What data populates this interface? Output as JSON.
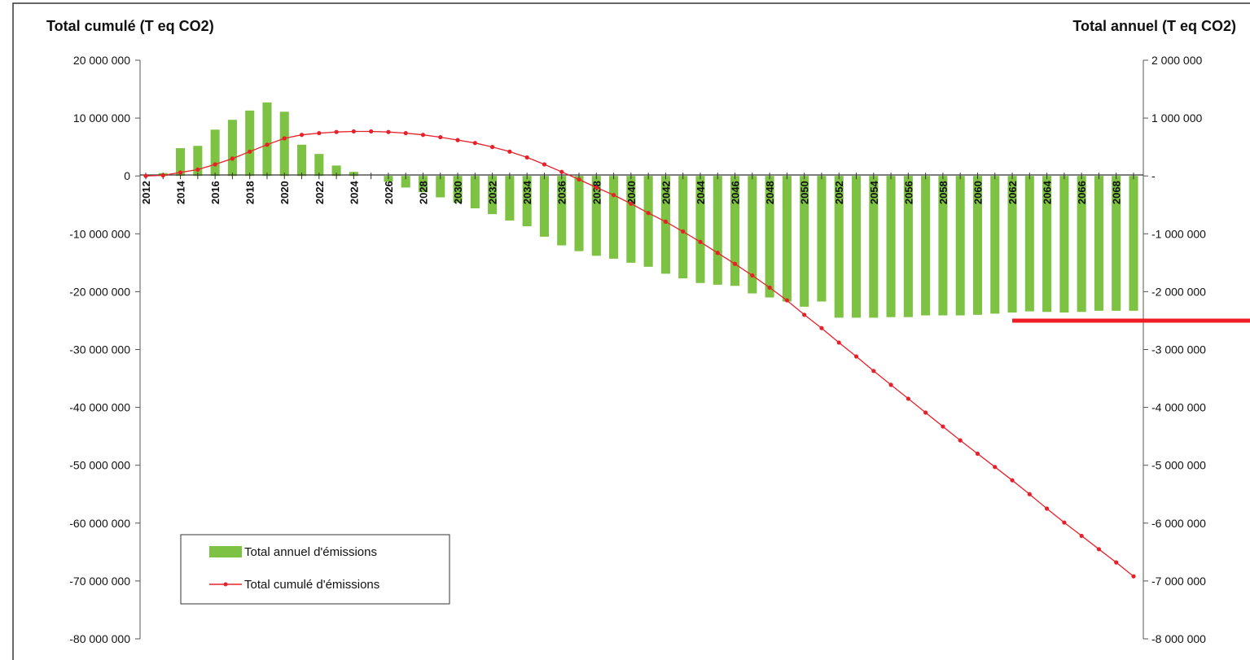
{
  "chart_data": {
    "type": "bar+line",
    "title": "",
    "y_left_label": "Total cumulé (T eq CO2)",
    "y_right_label": "Total annuel (T eq CO2)",
    "y_left_lim": [
      -80000000,
      20000000
    ],
    "y_right_lim": [
      -8000000,
      2000000
    ],
    "y_left_ticks": [
      "20 000 000",
      "10 000 000",
      "0",
      "-10 000 000",
      "-20 000 000",
      "-30 000 000",
      "-40 000 000",
      "-50 000 000",
      "-60 000 000",
      "-70 000 000",
      "-80 000 000"
    ],
    "y_right_ticks": [
      "2 000 000",
      "1 000 000",
      "-",
      "-1 000 000",
      "-2 000 000",
      "-3 000 000",
      "-4 000 000",
      "-5 000 000",
      "-6 000 000",
      "-7 000 000",
      "-8 000 000"
    ],
    "x_tick_labels": [
      "2012",
      "2014",
      "2016",
      "2018",
      "2020",
      "2022",
      "2024",
      "2026",
      "2028",
      "2030",
      "2032",
      "2034",
      "2036",
      "2038",
      "2040",
      "2042",
      "2044",
      "2046",
      "2048",
      "2050",
      "2052",
      "2054",
      "2056",
      "2058",
      "2060",
      "2062",
      "2064",
      "2066",
      "2068"
    ],
    "years": [
      2012,
      2013,
      2014,
      2015,
      2016,
      2017,
      2018,
      2019,
      2020,
      2021,
      2022,
      2023,
      2024,
      2025,
      2026,
      2027,
      2028,
      2029,
      2030,
      2031,
      2032,
      2033,
      2034,
      2035,
      2036,
      2037,
      2038,
      2039,
      2040,
      2041,
      2042,
      2043,
      2044,
      2045,
      2046,
      2047,
      2048,
      2049,
      2050,
      2051,
      2052,
      2053,
      2054,
      2055,
      2056,
      2057,
      2058,
      2059,
      2060,
      2061,
      2062,
      2063,
      2064,
      2065,
      2066,
      2067,
      2068,
      2069
    ],
    "series": [
      {
        "name": "Total annuel d'émissions",
        "type": "bar",
        "axis": "right",
        "color": "#7dc242",
        "values": [
          0,
          50000,
          480000,
          520000,
          800000,
          970000,
          1130000,
          1270000,
          1110000,
          540000,
          380000,
          180000,
          70000,
          0,
          -100000,
          -200000,
          -280000,
          -370000,
          -460000,
          -560000,
          -660000,
          -770000,
          -870000,
          -1050000,
          -1200000,
          -1300000,
          -1380000,
          -1430000,
          -1500000,
          -1570000,
          -1690000,
          -1770000,
          -1850000,
          -1880000,
          -1900000,
          -2030000,
          -2100000,
          -2170000,
          -2260000,
          -2170000,
          -2450000,
          -2450000,
          -2450000,
          -2440000,
          -2440000,
          -2410000,
          -2410000,
          -2410000,
          -2400000,
          -2380000,
          -2360000,
          -2340000,
          -2350000,
          -2360000,
          -2350000,
          -2330000,
          -2330000,
          -2330000
        ]
      },
      {
        "name": "Total cumulé d'émissions",
        "type": "line",
        "axis": "left",
        "color": "#e8202a",
        "values": [
          0,
          100000,
          600000,
          1100000,
          2000000,
          3000000,
          4200000,
          5400000,
          6500000,
          7100000,
          7400000,
          7600000,
          7700000,
          7700000,
          7600000,
          7400000,
          7100000,
          6700000,
          6200000,
          5700000,
          5000000,
          4200000,
          3200000,
          2000000,
          700000,
          -600000,
          -2000000,
          -3300000,
          -4800000,
          -6400000,
          -7900000,
          -9600000,
          -11400000,
          -13300000,
          -15200000,
          -17200000,
          -19300000,
          -21500000,
          -24000000,
          -26300000,
          -28800000,
          -31200000,
          -33700000,
          -36100000,
          -38500000,
          -40900000,
          -43300000,
          -45700000,
          -48000000,
          -50300000,
          -52600000,
          -55000000,
          -57500000,
          -59900000,
          -62200000,
          -64500000,
          -66800000,
          -69200000
        ]
      }
    ],
    "legend": {
      "position": "bottom-left",
      "entries": [
        "Total annuel d'émissions",
        "Total cumulé d'émissions"
      ]
    },
    "grid": false,
    "annotation_color": "#ee1c24"
  }
}
